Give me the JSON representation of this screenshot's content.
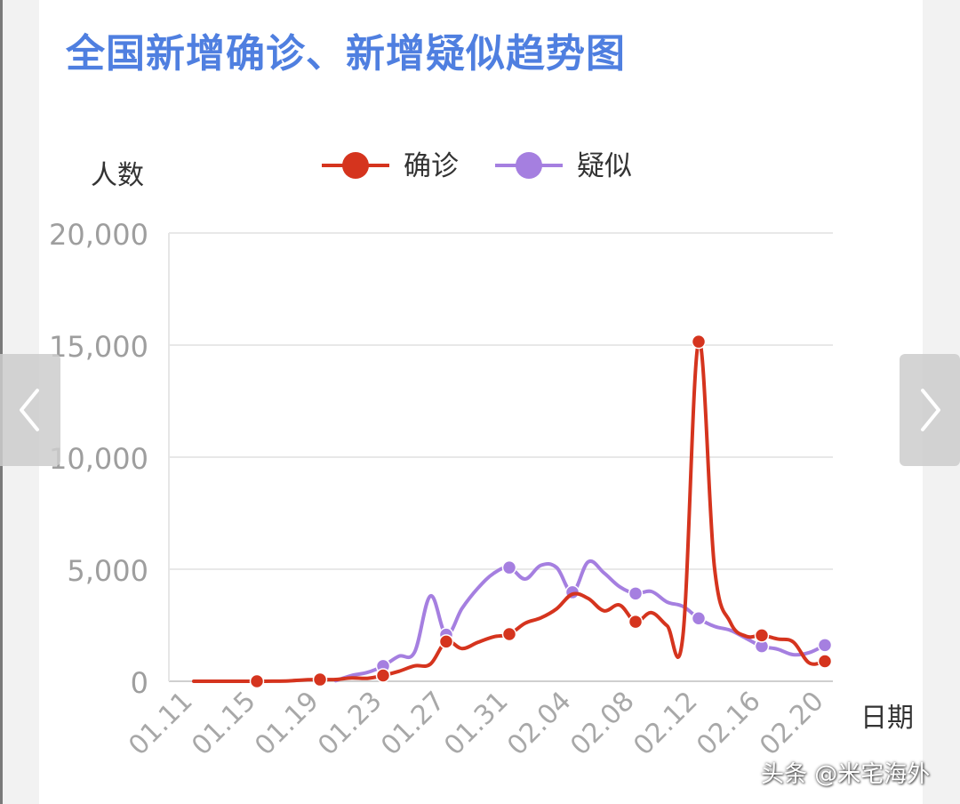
{
  "chart_data": {
    "type": "line",
    "title": "全国新增确诊、新增疑似趋势图",
    "ylabel": "人数",
    "xlabel": "日期",
    "ylim": [
      0,
      20000
    ],
    "yticks": [
      0,
      5000,
      10000,
      15000,
      20000
    ],
    "ytick_labels": [
      "0",
      "5,000",
      "10,000",
      "15,000",
      "20,000"
    ],
    "x_tick_labels": [
      "01.11",
      "01.15",
      "01.19",
      "01.23",
      "01.27",
      "01.31",
      "02.04",
      "02.08",
      "02.12",
      "02.16",
      "02.20"
    ],
    "grid": true,
    "legend_position": "top-center",
    "x": [
      "01.11",
      "01.12",
      "01.13",
      "01.14",
      "01.15",
      "01.16",
      "01.17",
      "01.18",
      "01.19",
      "01.20",
      "01.21",
      "01.22",
      "01.23",
      "01.24",
      "01.25",
      "01.26",
      "01.27",
      "01.28",
      "01.29",
      "01.30",
      "01.31",
      "02.01",
      "02.02",
      "02.03",
      "02.04",
      "02.05",
      "02.06",
      "02.07",
      "02.08",
      "02.09",
      "02.10",
      "02.11",
      "02.12",
      "02.13",
      "02.14",
      "02.15",
      "02.16",
      "02.17",
      "02.18",
      "02.19",
      "02.20"
    ],
    "series": [
      {
        "name": "确诊",
        "color": "#d5341e",
        "values": [
          0,
          0,
          0,
          0,
          0,
          4,
          17,
          59,
          77,
          77,
          149,
          131,
          259,
          444,
          688,
          769,
          1771,
          1459,
          1737,
          1982,
          2102,
          2590,
          2829,
          3235,
          3887,
          3694,
          3143,
          3399,
          2656,
          3062,
          2478,
          2015,
          15152,
          5090,
          2641,
          2009,
          2048,
          1886,
          1749,
          820,
          892
        ],
        "markers": [
          4,
          8,
          12,
          16,
          20,
          28,
          32,
          36,
          40
        ]
      },
      {
        "name": "疑似",
        "color": "#a57fe0",
        "values": [
          null,
          null,
          null,
          null,
          null,
          null,
          null,
          null,
          null,
          27,
          257,
          393,
          680,
          1118,
          1309,
          3806,
          2077,
          3248,
          4148,
          4812,
          5072,
          4562,
          5173,
          5072,
          3971,
          5328,
          4833,
          4214,
          3916,
          4008,
          3536,
          3342,
          2807,
          2450,
          2277,
          1918,
          1563,
          1432,
          1185,
          1277,
          1614
        ],
        "markers": [
          12,
          16,
          20,
          24,
          28,
          32,
          36,
          40
        ]
      }
    ]
  },
  "nav": {
    "prev_icon": "chevron-left-icon",
    "next_icon": "chevron-right-icon"
  },
  "watermark": "头条 @米宅海外",
  "colors": {
    "title": "#4f7fe0",
    "grid": "#e8e8e8",
    "tick_text": "#9e9e9e",
    "axis_text": "#333333"
  }
}
